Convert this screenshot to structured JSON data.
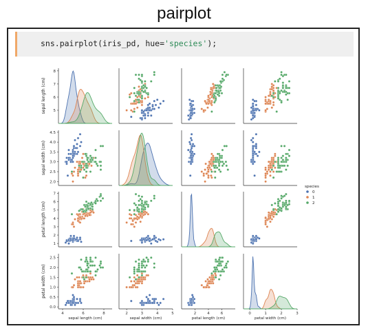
{
  "page_title": "pairplot",
  "code_cell": {
    "prefix": "sns.pairplot(iris_pd, hue=",
    "string": "'species'",
    "suffix": ");"
  },
  "chart_data": {
    "type": "scatter",
    "variables": [
      "sepal length (cm)",
      "sepal width (cm)",
      "petal length (cm)",
      "petal width (cm)"
    ],
    "axis_ticks": {
      "sepal length (cm)": [
        5,
        6,
        7,
        8
      ],
      "sepal width (cm)": [
        2.0,
        2.5,
        3.0,
        3.5,
        4.0,
        4.5
      ],
      "petal length (cm)": [
        1,
        2,
        3,
        4,
        5,
        6,
        7
      ],
      "petal width (cm)": [
        0.0,
        0.5,
        1.0,
        1.5,
        2.0,
        2.5
      ]
    },
    "x_ticks": {
      "sepal length (cm)": [
        4,
        6,
        8
      ],
      "sepal width (cm)": [
        2,
        3,
        4,
        5
      ],
      "petal length (cm)": [
        2,
        4,
        6
      ],
      "petal width (cm)": [
        0,
        1,
        2,
        3
      ]
    },
    "x_range": {
      "sepal length (cm)": [
        3.6,
        8.8
      ],
      "sepal width (cm)": [
        1.5,
        5.0
      ],
      "petal length (cm)": [
        0.0,
        8.0
      ],
      "petal width (cm)": [
        -0.4,
        3.0
      ]
    },
    "y_range": {
      "sepal length (cm)": [
        4.0,
        8.2
      ],
      "sepal width (cm)": [
        1.8,
        4.6
      ],
      "petal length (cm)": [
        0.6,
        7.2
      ],
      "petal width (cm)": [
        -0.1,
        2.7
      ]
    },
    "diagonal": "kde",
    "legend": {
      "title": "species",
      "labels": [
        "0",
        "1",
        "2"
      ],
      "position": "right"
    },
    "series": [
      {
        "name": "0",
        "color": "#4c72b0",
        "points": [
          [
            5.1,
            3.5,
            1.4,
            0.2
          ],
          [
            4.9,
            3.0,
            1.4,
            0.2
          ],
          [
            4.7,
            3.2,
            1.3,
            0.2
          ],
          [
            4.6,
            3.1,
            1.5,
            0.2
          ],
          [
            5.0,
            3.6,
            1.4,
            0.2
          ],
          [
            5.4,
            3.9,
            1.7,
            0.4
          ],
          [
            4.6,
            3.4,
            1.4,
            0.3
          ],
          [
            5.0,
            3.4,
            1.5,
            0.2
          ],
          [
            4.4,
            2.9,
            1.4,
            0.2
          ],
          [
            4.9,
            3.1,
            1.5,
            0.1
          ],
          [
            5.4,
            3.7,
            1.5,
            0.2
          ],
          [
            4.8,
            3.4,
            1.6,
            0.2
          ],
          [
            4.8,
            3.0,
            1.4,
            0.1
          ],
          [
            4.3,
            3.0,
            1.1,
            0.1
          ],
          [
            5.8,
            4.0,
            1.2,
            0.2
          ],
          [
            5.7,
            4.4,
            1.5,
            0.4
          ],
          [
            5.4,
            3.9,
            1.3,
            0.4
          ],
          [
            5.1,
            3.5,
            1.4,
            0.3
          ],
          [
            5.7,
            3.8,
            1.7,
            0.3
          ],
          [
            5.1,
            3.8,
            1.5,
            0.3
          ],
          [
            5.4,
            3.4,
            1.7,
            0.2
          ],
          [
            5.1,
            3.7,
            1.5,
            0.4
          ],
          [
            4.6,
            3.6,
            1.0,
            0.2
          ],
          [
            5.1,
            3.3,
            1.7,
            0.5
          ],
          [
            4.8,
            3.4,
            1.9,
            0.2
          ],
          [
            5.0,
            3.0,
            1.6,
            0.2
          ],
          [
            5.0,
            3.4,
            1.6,
            0.4
          ],
          [
            5.2,
            3.5,
            1.5,
            0.2
          ],
          [
            5.2,
            3.4,
            1.4,
            0.2
          ],
          [
            4.7,
            3.2,
            1.6,
            0.2
          ],
          [
            4.8,
            3.1,
            1.6,
            0.2
          ],
          [
            5.4,
            3.4,
            1.5,
            0.4
          ],
          [
            5.2,
            4.1,
            1.5,
            0.1
          ],
          [
            5.5,
            4.2,
            1.4,
            0.2
          ],
          [
            4.9,
            3.1,
            1.5,
            0.2
          ],
          [
            5.0,
            3.2,
            1.2,
            0.2
          ],
          [
            5.5,
            3.5,
            1.3,
            0.2
          ],
          [
            4.4,
            3.0,
            1.3,
            0.2
          ],
          [
            5.1,
            3.4,
            1.5,
            0.2
          ],
          [
            5.0,
            3.5,
            1.3,
            0.3
          ],
          [
            4.5,
            2.3,
            1.3,
            0.3
          ],
          [
            4.4,
            3.2,
            1.3,
            0.2
          ],
          [
            5.0,
            3.5,
            1.6,
            0.6
          ],
          [
            5.1,
            3.8,
            1.9,
            0.4
          ],
          [
            4.8,
            3.0,
            1.4,
            0.3
          ],
          [
            5.1,
            3.8,
            1.6,
            0.2
          ],
          [
            4.6,
            3.2,
            1.4,
            0.2
          ],
          [
            5.3,
            3.7,
            1.5,
            0.2
          ],
          [
            5.0,
            3.3,
            1.4,
            0.2
          ]
        ]
      },
      {
        "name": "1",
        "color": "#dd8452",
        "points": [
          [
            7.0,
            3.2,
            4.7,
            1.4
          ],
          [
            6.4,
            3.2,
            4.5,
            1.5
          ],
          [
            6.9,
            3.1,
            4.9,
            1.5
          ],
          [
            5.5,
            2.3,
            4.0,
            1.3
          ],
          [
            6.5,
            2.8,
            4.6,
            1.5
          ],
          [
            5.7,
            2.8,
            4.5,
            1.3
          ],
          [
            6.3,
            3.3,
            4.7,
            1.6
          ],
          [
            4.9,
            2.4,
            3.3,
            1.0
          ],
          [
            6.6,
            2.9,
            4.6,
            1.3
          ],
          [
            5.2,
            2.7,
            3.9,
            1.4
          ],
          [
            5.0,
            2.0,
            3.5,
            1.0
          ],
          [
            5.9,
            3.0,
            4.2,
            1.5
          ],
          [
            6.0,
            2.2,
            4.0,
            1.0
          ],
          [
            6.1,
            2.9,
            4.7,
            1.4
          ],
          [
            5.6,
            2.9,
            3.6,
            1.3
          ],
          [
            6.7,
            3.1,
            4.4,
            1.4
          ],
          [
            5.6,
            3.0,
            4.5,
            1.5
          ],
          [
            5.8,
            2.7,
            4.1,
            1.0
          ],
          [
            6.2,
            2.2,
            4.5,
            1.5
          ],
          [
            5.6,
            2.5,
            3.9,
            1.1
          ],
          [
            5.9,
            3.2,
            4.8,
            1.8
          ],
          [
            6.1,
            2.8,
            4.0,
            1.3
          ],
          [
            6.3,
            2.5,
            4.9,
            1.5
          ],
          [
            6.1,
            2.8,
            4.7,
            1.2
          ],
          [
            6.4,
            2.9,
            4.3,
            1.3
          ],
          [
            6.6,
            3.0,
            4.4,
            1.4
          ],
          [
            6.8,
            2.8,
            4.8,
            1.4
          ],
          [
            6.7,
            3.0,
            5.0,
            1.7
          ],
          [
            6.0,
            2.9,
            4.5,
            1.5
          ],
          [
            5.7,
            2.6,
            3.5,
            1.0
          ],
          [
            5.5,
            2.4,
            3.8,
            1.1
          ],
          [
            5.5,
            2.4,
            3.7,
            1.0
          ],
          [
            5.8,
            2.7,
            3.9,
            1.2
          ],
          [
            6.0,
            2.7,
            5.1,
            1.6
          ],
          [
            5.4,
            3.0,
            4.5,
            1.5
          ],
          [
            6.0,
            3.4,
            4.5,
            1.6
          ],
          [
            6.7,
            3.1,
            4.7,
            1.5
          ],
          [
            6.3,
            2.3,
            4.4,
            1.3
          ],
          [
            5.6,
            3.0,
            4.1,
            1.3
          ],
          [
            5.5,
            2.5,
            4.0,
            1.3
          ],
          [
            5.5,
            2.6,
            4.4,
            1.2
          ],
          [
            6.1,
            3.0,
            4.6,
            1.4
          ],
          [
            5.8,
            2.6,
            4.0,
            1.2
          ],
          [
            5.0,
            2.3,
            3.3,
            1.0
          ],
          [
            5.6,
            2.7,
            4.2,
            1.3
          ],
          [
            5.7,
            3.0,
            4.2,
            1.2
          ],
          [
            5.7,
            2.9,
            4.2,
            1.3
          ],
          [
            6.2,
            2.9,
            4.3,
            1.3
          ],
          [
            5.1,
            2.5,
            3.0,
            1.1
          ],
          [
            5.7,
            2.8,
            4.1,
            1.3
          ]
        ]
      },
      {
        "name": "2",
        "color": "#55a868",
        "points": [
          [
            6.3,
            3.3,
            6.0,
            2.5
          ],
          [
            5.8,
            2.7,
            5.1,
            1.9
          ],
          [
            7.1,
            3.0,
            5.9,
            2.1
          ],
          [
            6.3,
            2.9,
            5.6,
            1.8
          ],
          [
            6.5,
            3.0,
            5.8,
            2.2
          ],
          [
            7.6,
            3.0,
            6.6,
            2.1
          ],
          [
            4.9,
            2.5,
            4.5,
            1.7
          ],
          [
            7.3,
            2.9,
            6.3,
            1.8
          ],
          [
            6.7,
            2.5,
            5.8,
            1.8
          ],
          [
            7.2,
            3.6,
            6.1,
            2.5
          ],
          [
            6.5,
            3.2,
            5.1,
            2.0
          ],
          [
            6.4,
            2.7,
            5.3,
            1.9
          ],
          [
            6.8,
            3.0,
            5.5,
            2.1
          ],
          [
            5.7,
            2.5,
            5.0,
            2.0
          ],
          [
            5.8,
            2.8,
            5.1,
            2.4
          ],
          [
            6.4,
            3.2,
            5.3,
            2.3
          ],
          [
            6.5,
            3.0,
            5.5,
            1.8
          ],
          [
            7.7,
            3.8,
            6.7,
            2.2
          ],
          [
            7.7,
            2.6,
            6.9,
            2.3
          ],
          [
            6.0,
            2.2,
            5.0,
            1.5
          ],
          [
            6.9,
            3.2,
            5.7,
            2.3
          ],
          [
            5.6,
            2.8,
            4.9,
            2.0
          ],
          [
            7.7,
            2.8,
            6.7,
            2.0
          ],
          [
            6.3,
            2.7,
            4.9,
            1.8
          ],
          [
            6.7,
            3.3,
            5.7,
            2.1
          ],
          [
            7.2,
            3.2,
            6.0,
            1.8
          ],
          [
            6.2,
            2.8,
            4.8,
            1.8
          ],
          [
            6.1,
            3.0,
            4.9,
            1.8
          ],
          [
            6.4,
            2.8,
            5.6,
            2.1
          ],
          [
            7.2,
            3.0,
            5.8,
            1.6
          ],
          [
            7.4,
            2.8,
            6.1,
            1.9
          ],
          [
            7.9,
            3.8,
            6.4,
            2.0
          ],
          [
            6.4,
            2.8,
            5.6,
            2.2
          ],
          [
            6.3,
            2.8,
            5.1,
            1.5
          ],
          [
            6.1,
            2.6,
            5.6,
            1.4
          ],
          [
            7.7,
            3.0,
            6.1,
            2.3
          ],
          [
            6.3,
            3.4,
            5.6,
            2.4
          ],
          [
            6.4,
            3.1,
            5.5,
            1.8
          ],
          [
            6.0,
            3.0,
            4.8,
            1.8
          ],
          [
            6.9,
            3.1,
            5.4,
            2.1
          ],
          [
            6.7,
            3.1,
            5.6,
            2.4
          ],
          [
            6.9,
            3.1,
            5.1,
            2.3
          ],
          [
            6.8,
            3.2,
            5.9,
            2.3
          ],
          [
            6.7,
            3.3,
            5.7,
            2.5
          ],
          [
            6.7,
            3.0,
            5.2,
            2.3
          ],
          [
            6.3,
            2.5,
            5.0,
            1.9
          ],
          [
            6.5,
            3.0,
            5.2,
            2.0
          ],
          [
            6.2,
            3.4,
            5.4,
            2.3
          ],
          [
            5.9,
            3.0,
            5.1,
            1.8
          ]
        ]
      }
    ]
  }
}
